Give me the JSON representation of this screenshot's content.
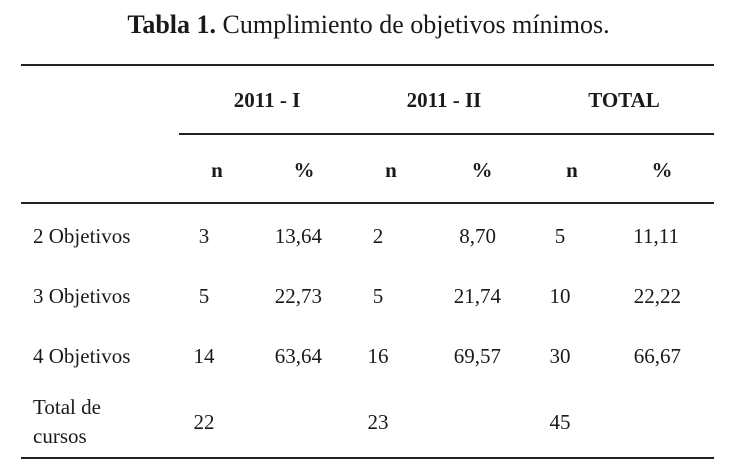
{
  "caption": {
    "label": "Tabla 1.",
    "text": " Cumplimiento de objetivos mínimos."
  },
  "table": {
    "groups": [
      "2011 - I",
      "2011 - II",
      "TOTAL"
    ],
    "subheaders": [
      "n",
      "%",
      "n",
      "%",
      "n",
      "%"
    ],
    "rows": [
      {
        "label": "2 Objetivos",
        "values": [
          "3",
          "13,64",
          "2",
          "8,70",
          "5",
          "11,11"
        ]
      },
      {
        "label": "3 Objetivos",
        "values": [
          "5",
          "22,73",
          "5",
          "21,74",
          "10",
          "22,22"
        ]
      },
      {
        "label": "4 Objetivos",
        "values": [
          "14",
          "63,64",
          "16",
          "69,57",
          "30",
          "66,67"
        ]
      }
    ],
    "total": {
      "label_line1": "Total de",
      "label_line2": "cursos",
      "values": [
        "22",
        "23",
        "45"
      ]
    }
  }
}
